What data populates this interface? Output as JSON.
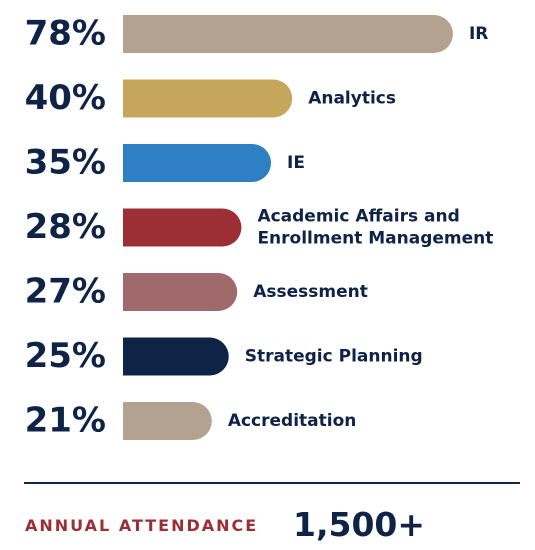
{
  "chart_data": {
    "type": "bar",
    "orientation": "horizontal",
    "xlim": [
      0,
      100
    ],
    "grid": false,
    "categories": [
      "IR",
      "Analytics",
      "IE",
      "Academic Affairs and Enrollment Management",
      "Assessment",
      "Strategic Planning",
      "Accreditation"
    ],
    "category_lines": [
      [
        "IR"
      ],
      [
        "Analytics"
      ],
      [
        "IE"
      ],
      [
        "Academic Affairs and",
        "Enrollment Management"
      ],
      [
        "Assessment"
      ],
      [
        "Strategic Planning"
      ],
      [
        "Accreditation"
      ]
    ],
    "values": [
      78,
      40,
      35,
      28,
      27,
      25,
      21
    ],
    "value_labels": [
      "78%",
      "40%",
      "35%",
      "28%",
      "27%",
      "25%",
      "21%"
    ],
    "colors": [
      "#b4a291",
      "#c6a55c",
      "#2f7fc4",
      "#9c2f35",
      "#a06a6c",
      "#0f2347",
      "#b4a291"
    ]
  },
  "footer": {
    "label": "ANNUAL ATTENDANCE",
    "value": "1,500+"
  },
  "colors": {
    "navy": "#0f2347",
    "crimson": "#9c2f35"
  }
}
